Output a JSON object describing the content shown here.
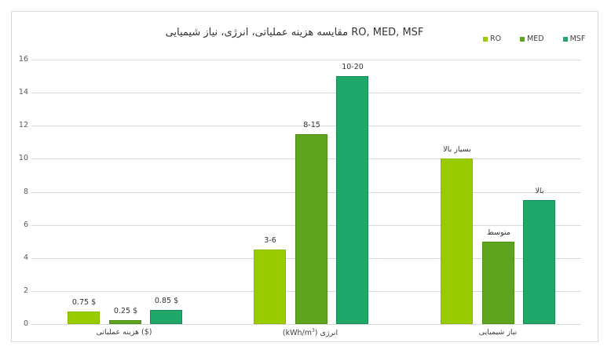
{
  "chart_data": {
    "type": "bar",
    "title": "مقایسه هزینه عملیاتی، انرژی، نیاز شیمیایی RO, MED, MSF",
    "xlabel": "",
    "ylabel": "",
    "ylim": [
      0,
      16
    ],
    "yticks": [
      "0",
      "2",
      "4",
      "6",
      "8",
      "10",
      "12",
      "14",
      "16"
    ],
    "grid": true,
    "legend_position": "top-right",
    "categories": [
      "هزینه عملیاتی ($)",
      "انرژی (kWh/m³)",
      "نیاز شیمیایی"
    ],
    "series": [
      {
        "name": "RO",
        "color": "#99CC00",
        "values": [
          0.75,
          4.5,
          10
        ],
        "labels": [
          "0.75 $",
          "3-6",
          "بسیار بالا"
        ]
      },
      {
        "name": "MED",
        "color": "#5EA51E",
        "values": [
          0.25,
          11.5,
          5
        ],
        "labels": [
          "0.25 $",
          "8-15",
          "متوسط"
        ]
      },
      {
        "name": "MSF",
        "color": "#1FA86A",
        "values": [
          0.85,
          15,
          7.5
        ],
        "labels": [
          "0.85 $",
          "10-20",
          "بالا"
        ]
      }
    ]
  },
  "title": "مقایسه هزینه عملیاتی، انرژی، نیاز شیمیایی RO, MED, MSF",
  "legend": [
    {
      "label": "RO",
      "color": "#99CC00"
    },
    {
      "label": "MED",
      "color": "#5EA51E"
    },
    {
      "label": "MSF",
      "color": "#1FA86A"
    }
  ],
  "categories": {
    "c0": "هزینه عملیاتی ($)",
    "c1_text": "انرژی",
    "c1_unit": "(kWh/m",
    "c1_sup": "3",
    "c1_close": ")",
    "c2": "نیاز شیمیایی"
  }
}
